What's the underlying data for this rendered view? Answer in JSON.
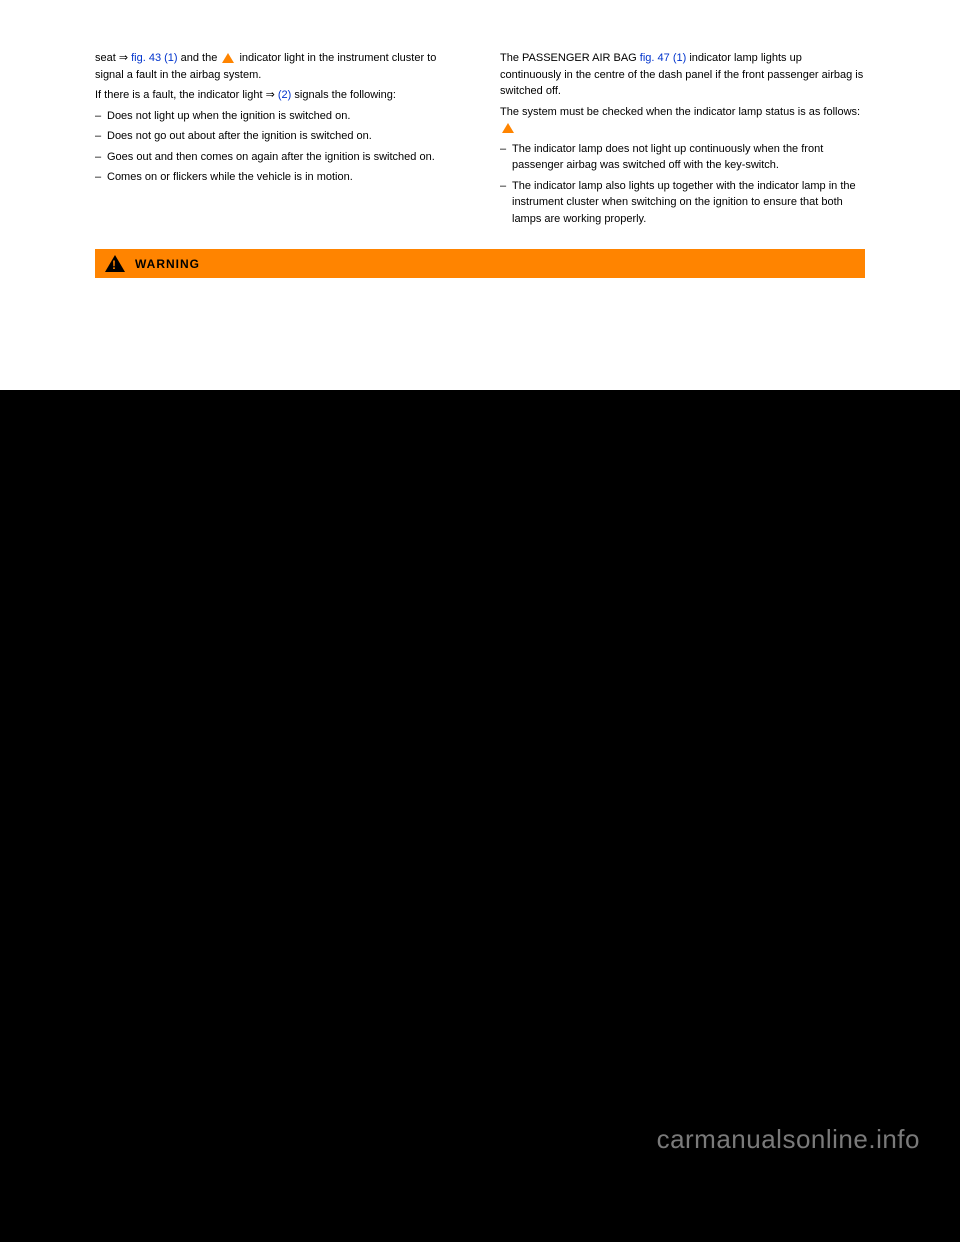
{
  "left": {
    "p1_a": "seat ⇒ ",
    "p1_link": "fig. 43 (1)",
    "p1_b": " and the ",
    "p1_c": " indicator light in the instrument cluster to signal a fault in the airbag system.",
    "p2_a": "If there is a fault, the indicator light ⇒ ",
    "p2_link": "(2)",
    "p2_b": " signals the following:",
    "li1": "Does not light up when the ignition is switched on.",
    "li2": "Does not go out about after the ignition is switched on.",
    "li3": "Goes out and then comes on again after the ignition is switched on.",
    "li4": "Comes on or flickers while the vehicle is in motion."
  },
  "right": {
    "p1_a": "The PASSENGER AIR BAG ",
    "p1_link": "fig. 47 (1)",
    "p1_b": " indicator lamp lights up continuously in the centre of the dash panel if the front passenger airbag is switched off.",
    "p2_a": "The system must be checked when the   indicator lamp   status is as follows:",
    "li1": "The indicator lamp does not light up continuously when the front passenger airbag was switched off with the key-switch.",
    "li2": "The indicator lamp also lights up together with the indicator lamp   in the instrument cluster when switching on the ignition to ensure that both lamps are working properly."
  },
  "warning_label": "WARNING",
  "watermark": "carmanualsonline.info"
}
